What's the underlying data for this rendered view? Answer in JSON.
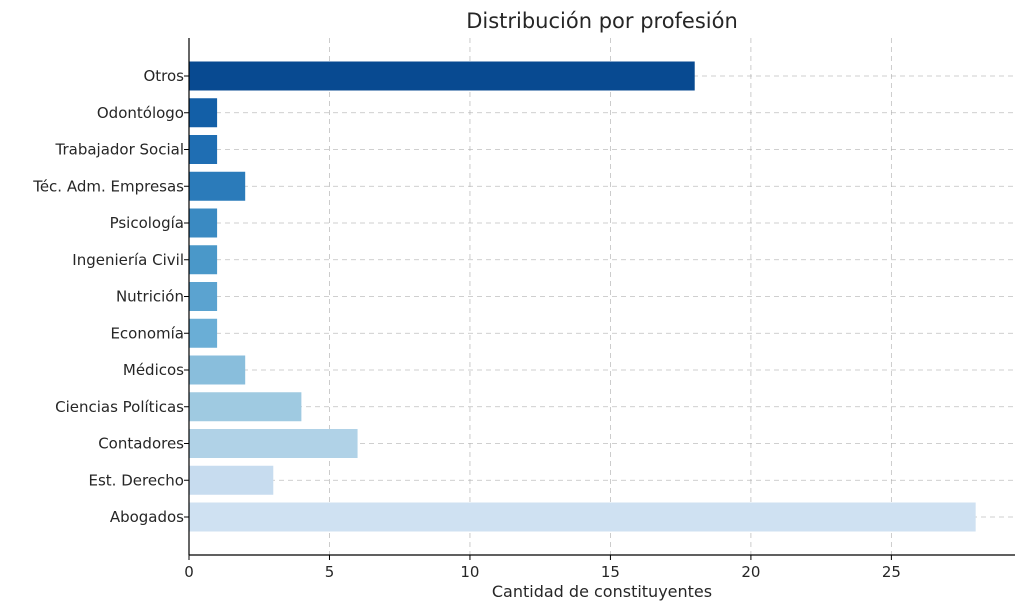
{
  "chart_data": {
    "type": "bar",
    "orientation": "horizontal",
    "title": "Distribución por profesión",
    "xlabel": "Cantidad de constituyentes",
    "ylabel": "",
    "xlim": [
      0,
      29.4
    ],
    "xticks": [
      0,
      5,
      10,
      15,
      20,
      25
    ],
    "grid": true,
    "categories": [
      "Abogados",
      "Est. Derecho",
      "Contadores",
      "Ciencias Políticas",
      "Médicos",
      "Economía",
      "Nutrición",
      "Ingeniería Civil",
      "Psicología",
      "Téc. Adm. Empresas",
      "Trabajador Social",
      "Odontólogo",
      "Otros"
    ],
    "values": [
      28,
      3,
      6,
      4,
      2,
      1,
      1,
      1,
      1,
      2,
      1,
      1,
      18
    ],
    "colors": [
      "#cfe1f2",
      "#c7dcef",
      "#b0d2e7",
      "#9fcae1",
      "#89bedc",
      "#6aaed6",
      "#5ba3d0",
      "#4a98c9",
      "#3a8ac2",
      "#2b7bba",
      "#1f6eb3",
      "#135fa7",
      "#084a91"
    ]
  }
}
